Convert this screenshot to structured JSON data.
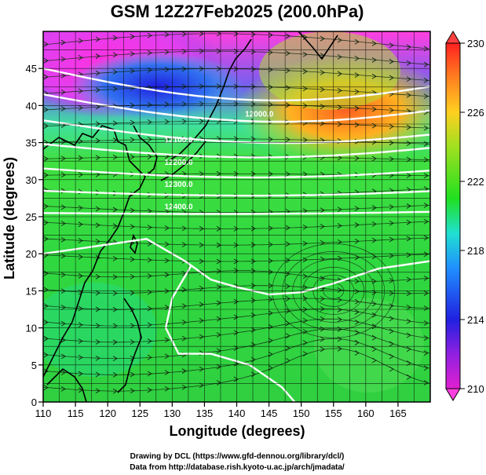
{
  "title": "GSM 12Z27Feb2025 (200.0hPa)",
  "chart_data": {
    "type": "heatmap",
    "title": "GSM 12Z27Feb2025 (200.0hPa)",
    "xlabel": "Longitude (degrees)",
    "ylabel": "Latitude  (degrees)",
    "xlim": [
      110,
      170
    ],
    "ylim": [
      0,
      50
    ],
    "xticks": [
      "110",
      "115",
      "120",
      "125",
      "130",
      "135",
      "140",
      "145",
      "150",
      "155",
      "160",
      "165"
    ],
    "yticks": [
      "0",
      "5",
      "10",
      "15",
      "20",
      "25",
      "30",
      "35",
      "40",
      "45"
    ],
    "colorbar": {
      "ticks": [
        "210",
        "214",
        "218",
        "222",
        "226",
        "230"
      ],
      "range": [
        210,
        230
      ],
      "colors": [
        "#e020d0",
        "#9020e0",
        "#2020e0",
        "#2080ff",
        "#20e0e0",
        "#20e080",
        "#20e020",
        "#80e020",
        "#e0e020",
        "#ffa020",
        "#ff2020"
      ]
    },
    "contour_labels": [
      "12000.0",
      "12100.0",
      "12200.0",
      "12300.0",
      "12400.0"
    ],
    "contour_heights": [
      11800,
      11900,
      12000,
      12100,
      12200,
      12300,
      12400
    ],
    "grid": true
  },
  "credits": {
    "line1": "Drawing by DCL (https://www.gfd-dennou.org/library/dcl/)",
    "line2": "Data from http://database.rish.kyoto-u.ac.jp/arch/jmadata/"
  }
}
